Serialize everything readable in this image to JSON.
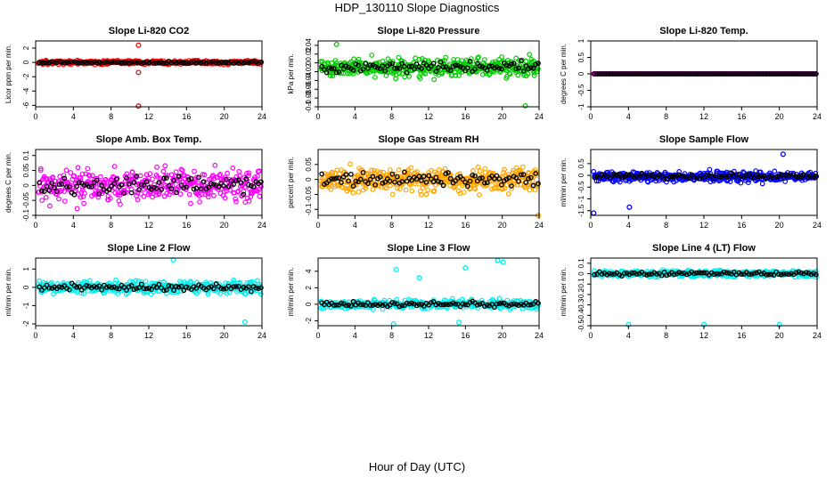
{
  "figure": {
    "title": "HDP_130110  Slope Diagnostics",
    "xlabel": "Hour of Day (UTC)"
  },
  "chart_data": [
    {
      "type": "scatter",
      "title": "Slope Li-820 CO2",
      "ylabel": "Licor ppm per min.",
      "xlabel": "",
      "color": "#ff0000",
      "xlim": [
        0,
        24
      ],
      "ylim": [
        -6.2,
        3.0
      ],
      "xticks": [
        0,
        4,
        8,
        12,
        16,
        20,
        24
      ],
      "yticks": [
        -6,
        -4,
        -2,
        0,
        2
      ],
      "series_desc": {
        "center": 0.0,
        "spread": 0.25
      },
      "outliers": [
        [
          10.9,
          2.4
        ],
        [
          10.9,
          -1.4
        ],
        [
          10.9,
          -6.1
        ]
      ]
    },
    {
      "type": "scatter",
      "title": "Slope Li-820 Pressure",
      "ylabel": "kPa per min.",
      "xlabel": "",
      "color": "#00cc00",
      "xlim": [
        0,
        24
      ],
      "ylim": [
        -0.1,
        0.05
      ],
      "xticks": [
        0,
        4,
        8,
        12,
        16,
        20,
        24
      ],
      "yticks": [
        -0.1,
        -0.08,
        -0.06,
        -0.04,
        -0.02,
        0.0,
        0.02,
        0.04
      ],
      "series_desc": {
        "center": -0.01,
        "spread": 0.02
      },
      "outliers": [
        [
          22.5,
          -0.098
        ],
        [
          2.0,
          0.042
        ]
      ]
    },
    {
      "type": "scatter",
      "title": "Slope Li-820 Temp.",
      "ylabel": "degrees C per min.",
      "xlabel": "",
      "color": "#cc00cc",
      "xlim": [
        0,
        24
      ],
      "ylim": [
        -1.0,
        1.0
      ],
      "xticks": [
        0,
        4,
        8,
        12,
        16,
        20,
        24
      ],
      "yticks": [
        -1.0,
        -0.5,
        0.0,
        0.5,
        1.0
      ],
      "series_desc": {
        "center": 0.0,
        "spread": 0.0
      },
      "outliers": []
    },
    {
      "type": "scatter",
      "title": "Slope Amb. Box Temp.",
      "ylabel": "degrees C per min.",
      "xlabel": "",
      "color": "#ff00ff",
      "xlim": [
        0,
        24
      ],
      "ylim": [
        -0.1,
        0.12
      ],
      "xticks": [
        0,
        4,
        8,
        12,
        16,
        20,
        24
      ],
      "yticks": [
        -0.1,
        -0.05,
        0.0,
        0.05,
        0.1
      ],
      "series_desc": {
        "center": 0.0,
        "spread": 0.05
      },
      "outliers": []
    },
    {
      "type": "scatter",
      "title": "Slope Gas Stream RH",
      "ylabel": "percent per min.",
      "xlabel": "",
      "color": "#ffa500",
      "xlim": [
        0,
        24
      ],
      "ylim": [
        -0.12,
        0.1
      ],
      "xticks": [
        0,
        4,
        8,
        12,
        16,
        20,
        24
      ],
      "yticks": [
        -0.1,
        -0.05,
        0.0,
        0.05
      ],
      "series_desc": {
        "center": 0.0,
        "spread": 0.04
      },
      "outliers": [
        [
          23.9,
          -0.12
        ]
      ]
    },
    {
      "type": "scatter",
      "title": "Slope Sample Flow",
      "ylabel": "ml/min per min.",
      "xlabel": "",
      "color": "#0000ff",
      "xlim": [
        0,
        24
      ],
      "ylim": [
        -1.7,
        1.1
      ],
      "xticks": [
        0,
        4,
        8,
        12,
        16,
        20,
        24
      ],
      "yticks": [
        -1.5,
        -1.0,
        -0.5,
        0.0,
        0.5
      ],
      "series_desc": {
        "center": -0.05,
        "spread": 0.2
      },
      "outliers": [
        [
          0.3,
          -1.6
        ],
        [
          4.1,
          -1.35
        ],
        [
          20.4,
          0.9
        ]
      ]
    },
    {
      "type": "scatter",
      "title": "Slope Line 2 Flow",
      "ylabel": "ml/min per min.",
      "xlabel": "",
      "color": "#00eeee",
      "xlim": [
        0,
        24
      ],
      "ylim": [
        -2.1,
        1.6
      ],
      "xticks": [
        0,
        4,
        8,
        12,
        16,
        20,
        24
      ],
      "yticks": [
        -2.0,
        -1.0,
        0.0,
        1.0
      ],
      "series_desc": {
        "center": 0.0,
        "spread": 0.3
      },
      "outliers": [
        [
          14.6,
          1.5
        ],
        [
          22.2,
          -1.9
        ]
      ]
    },
    {
      "type": "scatter",
      "title": "Slope Line 3 Flow",
      "ylabel": "ml/min per min.",
      "xlabel": "",
      "color": "#00eeee",
      "xlim": [
        0,
        24
      ],
      "ylim": [
        -2.6,
        5.6
      ],
      "xticks": [
        0,
        4,
        8,
        12,
        16,
        20,
        24
      ],
      "yticks": [
        -2,
        0,
        2,
        4
      ],
      "series_desc": {
        "center": 0.0,
        "spread": 0.5
      },
      "outliers": [
        [
          19.5,
          5.3
        ],
        [
          20.1,
          5.1
        ],
        [
          8.5,
          4.2
        ],
        [
          16.0,
          4.4
        ],
        [
          11.0,
          3.2
        ],
        [
          8.2,
          -2.4
        ],
        [
          15.3,
          -2.2
        ]
      ]
    },
    {
      "type": "scatter",
      "title": "Slope Line 4 (LT) Flow",
      "ylabel": "ml/min per min.",
      "xlabel": "",
      "color": "#00eeee",
      "xlim": [
        0,
        24
      ],
      "ylim": [
        -0.5,
        0.15
      ],
      "xticks": [
        0,
        4,
        8,
        12,
        16,
        20,
        24
      ],
      "yticks": [
        -0.5,
        -0.4,
        -0.3,
        -0.2,
        -0.1,
        0.0,
        0.1
      ],
      "series_desc": {
        "center": 0.0,
        "spread": 0.03
      },
      "outliers": [
        [
          4.0,
          -0.49
        ],
        [
          12.0,
          -0.49
        ],
        [
          20.0,
          -0.49
        ]
      ]
    }
  ]
}
